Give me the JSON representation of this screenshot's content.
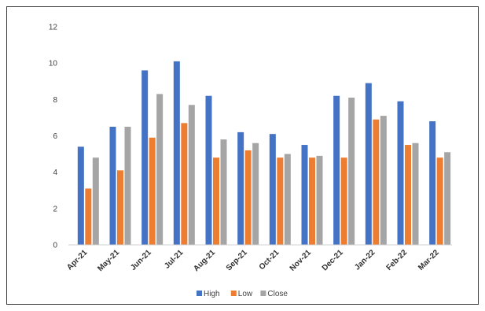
{
  "chart_data": {
    "type": "bar",
    "categories": [
      "Apr-21",
      "May-21",
      "Jun-21",
      "Jul-21",
      "Aug-21",
      "Sep-21",
      "Oct-21",
      "Nov-21",
      "Dec-21",
      "Jan-22",
      "Feb-22",
      "Mar-22"
    ],
    "series": [
      {
        "name": "High",
        "color": "#4472C4",
        "values": [
          5.4,
          6.5,
          9.6,
          10.1,
          8.2,
          6.2,
          6.1,
          5.5,
          8.2,
          8.9,
          7.9,
          6.8
        ]
      },
      {
        "name": "Low",
        "color": "#ED7D31",
        "values": [
          3.1,
          4.1,
          5.9,
          6.7,
          4.8,
          5.2,
          4.8,
          4.8,
          4.8,
          6.9,
          5.5,
          4.8
        ]
      },
      {
        "name": "Close",
        "color": "#A5A5A5",
        "values": [
          4.8,
          6.5,
          8.3,
          7.7,
          5.8,
          5.6,
          5.0,
          4.9,
          8.1,
          7.1,
          5.6,
          5.1
        ]
      }
    ],
    "y_ticks": [
      "0",
      "2",
      "4",
      "6",
      "8",
      "10",
      "12"
    ],
    "ylim": [
      0,
      12
    ],
    "grid": false,
    "legend": "bottom"
  }
}
